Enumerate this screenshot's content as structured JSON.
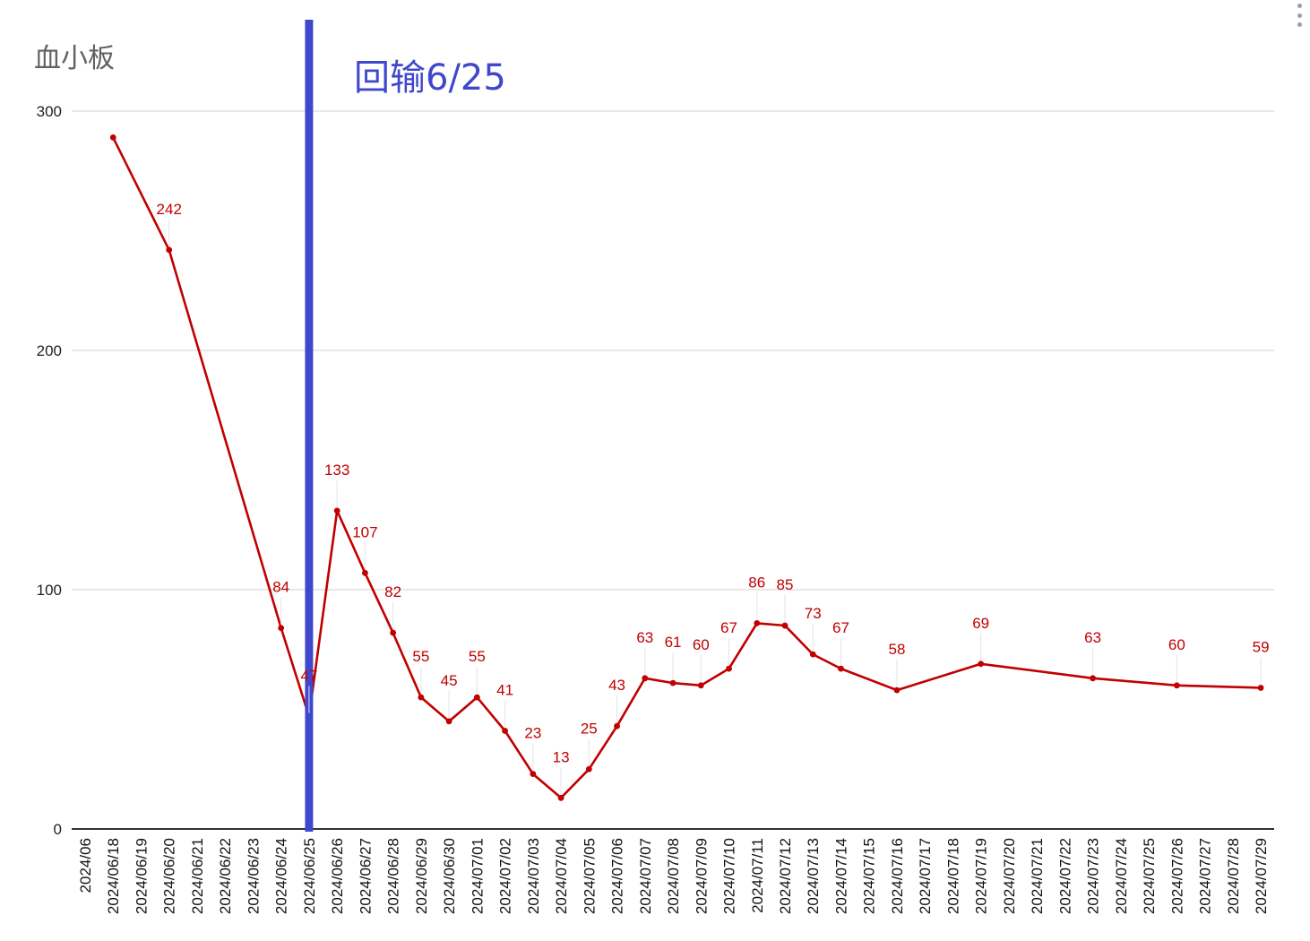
{
  "menu": {
    "icon": "more-vert-icon"
  },
  "chart_data": {
    "type": "line",
    "title": "血小板",
    "annotation": "回输6/25",
    "xlabel": "",
    "ylabel": "",
    "ylim": [
      0,
      300
    ],
    "yticks": [
      0,
      100,
      200,
      300
    ],
    "grid": true,
    "line_color": "#c00000",
    "marker_color": "#3f48cc",
    "marker_at": "2024/06/25",
    "categories": [
      "2024/06",
      "2024/06/18",
      "2024/06/19",
      "2024/06/20",
      "2024/06/21",
      "2024/06/22",
      "2024/06/23",
      "2024/06/24",
      "2024/06/25",
      "2024/06/26",
      "2024/06/27",
      "2024/06/28",
      "2024/06/29",
      "2024/06/30",
      "2024/07/01",
      "2024/07/02",
      "2024/07/03",
      "2024/07/04",
      "2024/07/05",
      "2024/07/06",
      "2024/07/07",
      "2024/07/08",
      "2024/07/09",
      "2024/07/10",
      "2024/07/11",
      "2024/07/12",
      "2024/07/13",
      "2024/07/14",
      "2024/07/15",
      "2024/07/16",
      "2024/07/17",
      "2024/07/18",
      "2024/07/19",
      "2024/07/20",
      "2024/07/21",
      "2024/07/22",
      "2024/07/23",
      "2024/07/24",
      "2024/07/25",
      "2024/07/26",
      "2024/07/27",
      "2024/07/28",
      "2024/07/29"
    ],
    "series": [
      {
        "points": [
          {
            "x": "2024/06/18",
            "y": 289,
            "label": ""
          },
          {
            "x": "2024/06/20",
            "y": 242,
            "label": "242"
          },
          {
            "x": "2024/06/24",
            "y": 84,
            "label": "84"
          },
          {
            "x": "2024/06/25",
            "y": 47,
            "label": "47"
          },
          {
            "x": "2024/06/26",
            "y": 133,
            "label": "133"
          },
          {
            "x": "2024/06/27",
            "y": 107,
            "label": "107"
          },
          {
            "x": "2024/06/28",
            "y": 82,
            "label": "82"
          },
          {
            "x": "2024/06/29",
            "y": 55,
            "label": "55"
          },
          {
            "x": "2024/06/30",
            "y": 45,
            "label": "45"
          },
          {
            "x": "2024/07/01",
            "y": 55,
            "label": "55"
          },
          {
            "x": "2024/07/02",
            "y": 41,
            "label": "41"
          },
          {
            "x": "2024/07/03",
            "y": 23,
            "label": "23"
          },
          {
            "x": "2024/07/04",
            "y": 13,
            "label": "13"
          },
          {
            "x": "2024/07/05",
            "y": 25,
            "label": "25"
          },
          {
            "x": "2024/07/06",
            "y": 43,
            "label": "43"
          },
          {
            "x": "2024/07/07",
            "y": 63,
            "label": "63"
          },
          {
            "x": "2024/07/08",
            "y": 61,
            "label": "61"
          },
          {
            "x": "2024/07/09",
            "y": 60,
            "label": "60"
          },
          {
            "x": "2024/07/10",
            "y": 67,
            "label": "67"
          },
          {
            "x": "2024/07/11",
            "y": 86,
            "label": "86"
          },
          {
            "x": "2024/07/12",
            "y": 85,
            "label": "85"
          },
          {
            "x": "2024/07/13",
            "y": 73,
            "label": "73"
          },
          {
            "x": "2024/07/14",
            "y": 67,
            "label": "67"
          },
          {
            "x": "2024/07/16",
            "y": 58,
            "label": "58"
          },
          {
            "x": "2024/07/19",
            "y": 69,
            "label": "69"
          },
          {
            "x": "2024/07/23",
            "y": 63,
            "label": "63"
          },
          {
            "x": "2024/07/26",
            "y": 60,
            "label": "60"
          },
          {
            "x": "2024/07/29",
            "y": 59,
            "label": "59"
          }
        ]
      }
    ]
  }
}
